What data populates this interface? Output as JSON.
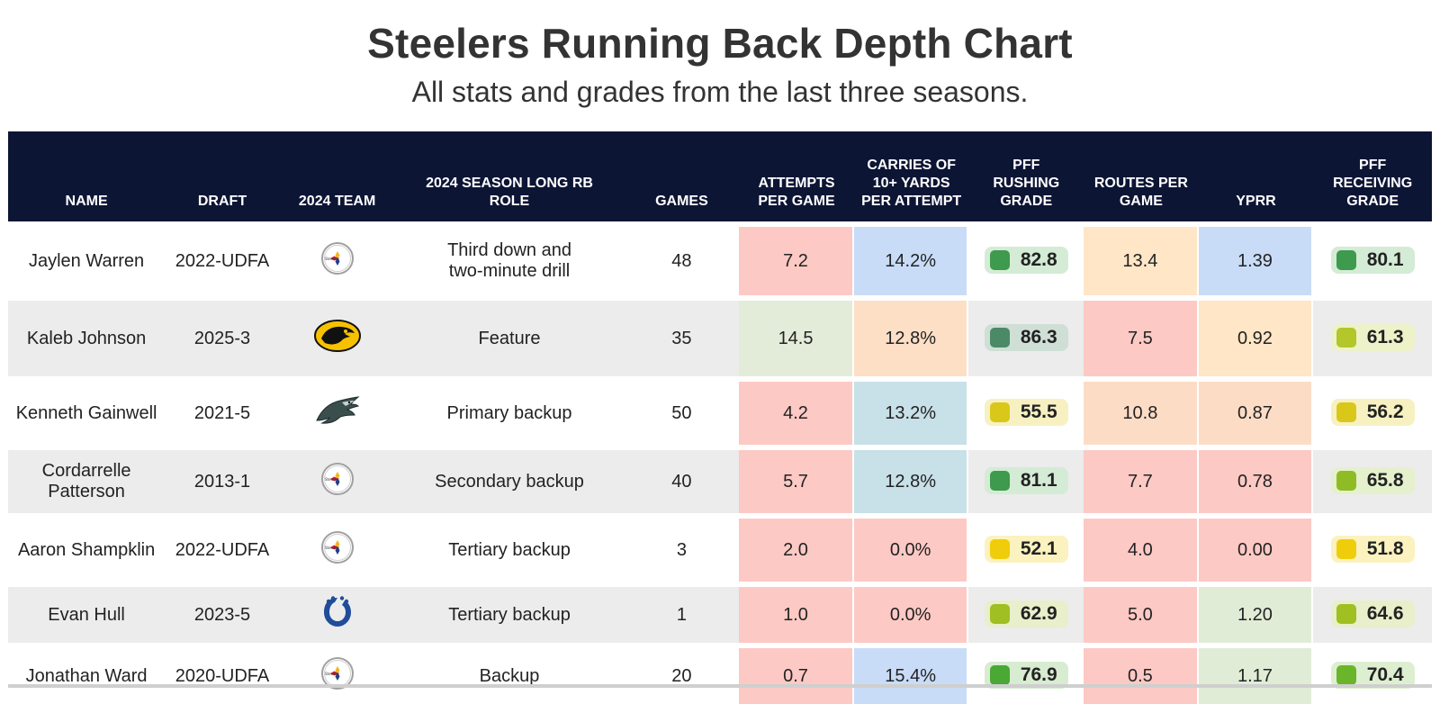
{
  "title": "Steelers Running Back Depth Chart",
  "subtitle": "All stats and grades from the last three seasons.",
  "colors": {
    "header_bg": "#0d1535",
    "red": "#fdc9c4",
    "salmon": "#fddcc4",
    "peach": "#fee3c9",
    "blue": "#c9dcf7",
    "lightblue": "#c8e0e8",
    "green": "#e1ecd7",
    "lightgreen": "#deefd8"
  },
  "chart_data": {
    "type": "table",
    "columns": [
      "NAME",
      "DRAFT",
      "2024 TEAM",
      "2024 SEASON LONG RB ROLE",
      "GAMES",
      "ATTEMPTS PER GAME",
      "CARRIES OF 10+ YARDS PER ATTEMPT",
      "PFF RUSHING GRADE",
      "ROUTES PER GAME",
      "YPRR",
      "PFF RECEIVING GRADE"
    ],
    "rows": [
      {
        "name": "Jaylen Warren",
        "draft": "2022-UDFA",
        "team_icon": "steelers-logo-icon",
        "role": "Third down and two-minute drill",
        "games": "48",
        "att_pg": "7.2",
        "carries10": "14.2%",
        "rush_grade": "82.8",
        "routes_pg": "13.4",
        "yprr": "1.39",
        "recv_grade": "80.1"
      },
      {
        "name": "Kaleb Johnson",
        "draft": "2025-3",
        "team_icon": "iowa-hawkeyes-logo-icon",
        "role": "Feature",
        "games": "35",
        "att_pg": "14.5",
        "carries10": "12.8%",
        "rush_grade": "86.3",
        "routes_pg": "7.5",
        "yprr": "0.92",
        "recv_grade": "61.3"
      },
      {
        "name": "Kenneth Gainwell",
        "draft": "2021-5",
        "team_icon": "eagles-logo-icon",
        "role": "Primary backup",
        "games": "50",
        "att_pg": "4.2",
        "carries10": "13.2%",
        "rush_grade": "55.5",
        "routes_pg": "10.8",
        "yprr": "0.87",
        "recv_grade": "56.2"
      },
      {
        "name": "Cordarrelle Patterson",
        "draft": "2013-1",
        "team_icon": "steelers-logo-icon",
        "role": "Secondary backup",
        "games": "40",
        "att_pg": "5.7",
        "carries10": "12.8%",
        "rush_grade": "81.1",
        "routes_pg": "7.7",
        "yprr": "0.78",
        "recv_grade": "65.8"
      },
      {
        "name": "Aaron Shampklin",
        "draft": "2022-UDFA",
        "team_icon": "steelers-logo-icon",
        "role": "Tertiary backup",
        "games": "3",
        "att_pg": "2.0",
        "carries10": "0.0%",
        "rush_grade": "52.1",
        "routes_pg": "4.0",
        "yprr": "0.00",
        "recv_grade": "51.8"
      },
      {
        "name": "Evan Hull",
        "draft": "2023-5",
        "team_icon": "colts-logo-icon",
        "role": "Tertiary backup",
        "games": "1",
        "att_pg": "1.0",
        "carries10": "0.0%",
        "rush_grade": "62.9",
        "routes_pg": "5.0",
        "yprr": "1.20",
        "recv_grade": "64.6"
      },
      {
        "name": "Jonathan Ward",
        "draft": "2020-UDFA",
        "team_icon": "steelers-logo-icon",
        "role": "Backup",
        "games": "20",
        "att_pg": "0.7",
        "carries10": "15.4%",
        "rush_grade": "76.9",
        "routes_pg": "0.5",
        "yprr": "1.17",
        "recv_grade": "70.4"
      }
    ]
  },
  "cell_colors": [
    {
      "att_pg": "#fdc9c4",
      "carries10": "#c9dcf7",
      "routes_pg": "#fee6c6",
      "yprr": "#c9dcf7",
      "rush_sw": "#3e9a4c",
      "rush_bg": "#d4ebd5",
      "recv_sw": "#3e9a4c",
      "recv_bg": "#d4ebd5"
    },
    {
      "att_pg": "#e3ecd8",
      "carries10": "#fddfc6",
      "routes_pg": "#fdc9c4",
      "yprr": "#fee6c6",
      "rush_sw": "#4a8a66",
      "rush_bg": "#cfdfd6",
      "recv_sw": "#b3c62a",
      "recv_bg": "#eef2c9"
    },
    {
      "att_pg": "#fdc9c4",
      "carries10": "#c8e0e8",
      "routes_pg": "#fddcc6",
      "yprr": "#fddcc6",
      "rush_sw": "#d9c81a",
      "rush_bg": "#f7f1c2",
      "recv_sw": "#d9c81a",
      "recv_bg": "#f7f1c2"
    },
    {
      "att_pg": "#fdc9c4",
      "carries10": "#c8e0e8",
      "routes_pg": "#fdc9c4",
      "yprr": "#fdc9c4",
      "rush_sw": "#3e9a4c",
      "rush_bg": "#d4ebd5",
      "recv_sw": "#8fbc24",
      "recv_bg": "#e5f0cd"
    },
    {
      "att_pg": "#fdc9c4",
      "carries10": "#fdc9c4",
      "routes_pg": "#fdc9c4",
      "yprr": "#fdc9c4",
      "rush_sw": "#f0cd0a",
      "rush_bg": "#fbf2c0",
      "recv_sw": "#f0cd0a",
      "recv_bg": "#fbf2c0"
    },
    {
      "att_pg": "#fdc9c4",
      "carries10": "#fdc9c4",
      "routes_pg": "#fdc9c4",
      "yprr": "#e1ecd7",
      "rush_sw": "#9fbf22",
      "rush_bg": "#e8efca",
      "recv_sw": "#9fbf22",
      "recv_bg": "#e8efca"
    },
    {
      "att_pg": "#fdc9c4",
      "carries10": "#c9dcf7",
      "routes_pg": "#fdc9c4",
      "yprr": "#e1ecd7",
      "rush_sw": "#4aa834",
      "rush_bg": "#d7ecd0",
      "recv_sw": "#6bb52a",
      "recv_bg": "#ddefd0"
    }
  ]
}
